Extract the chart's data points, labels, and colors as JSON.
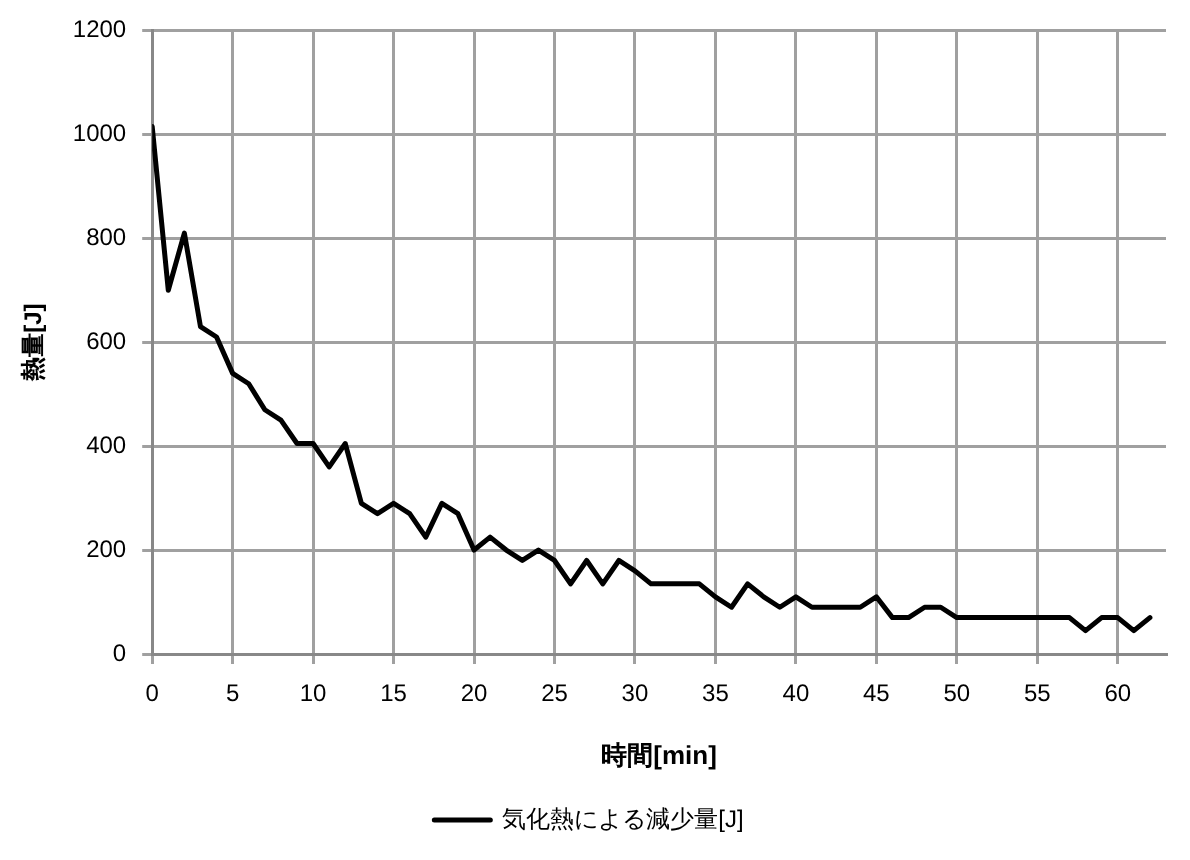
{
  "chart_data": {
    "type": "line",
    "xlabel": "時間[min]",
    "ylabel": "熱量[J]",
    "x": [
      0,
      1,
      2,
      3,
      4,
      5,
      6,
      7,
      8,
      9,
      10,
      11,
      12,
      13,
      14,
      15,
      16,
      17,
      18,
      19,
      20,
      21,
      22,
      23,
      24,
      25,
      26,
      27,
      28,
      29,
      30,
      31,
      32,
      33,
      34,
      35,
      36,
      37,
      38,
      39,
      40,
      41,
      42,
      43,
      44,
      45,
      46,
      47,
      48,
      49,
      50,
      51,
      52,
      53,
      54,
      55,
      56,
      57,
      58,
      59,
      60,
      61,
      62
    ],
    "series": [
      {
        "name": "気化熱による減少量[J]",
        "color": "#000000",
        "values": [
          1015,
          700,
          810,
          630,
          610,
          540,
          520,
          470,
          450,
          405,
          405,
          360,
          405,
          290,
          270,
          290,
          270,
          225,
          290,
          270,
          200,
          225,
          200,
          180,
          200,
          180,
          135,
          180,
          135,
          180,
          160,
          135,
          135,
          135,
          135,
          110,
          90,
          135,
          110,
          90,
          110,
          90,
          90,
          90,
          90,
          110,
          70,
          70,
          90,
          90,
          70,
          70,
          70,
          70,
          70,
          70,
          70,
          70,
          45,
          70,
          70,
          45,
          70
        ]
      }
    ],
    "xlim": [
      0,
      63
    ],
    "xticks": [
      0,
      5,
      10,
      15,
      20,
      25,
      30,
      35,
      40,
      45,
      50,
      55,
      60
    ],
    "ylim": [
      0,
      1200
    ],
    "yticks": [
      0,
      200,
      400,
      600,
      800,
      1000,
      1200
    ],
    "grid": true,
    "legend": "bottom",
    "marker": "none",
    "line_style": "solid"
  }
}
